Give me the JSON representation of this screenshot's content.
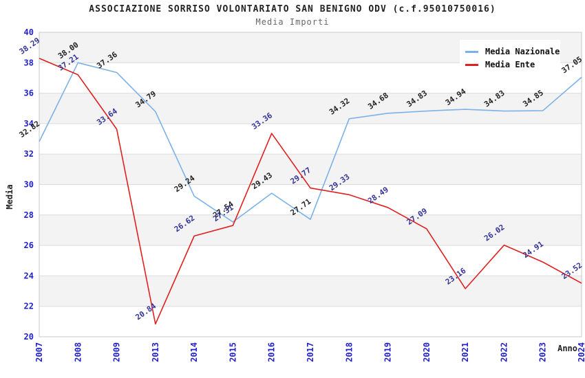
{
  "page": {
    "title": "ASSOCIAZIONE SORRISO VOLONTARIATO SAN BENIGNO ODV (c.f.95010750016)",
    "subtitle": "Media Importi"
  },
  "chart_data": {
    "type": "line",
    "title": "ASSOCIAZIONE SORRISO VOLONTARIATO SAN BENIGNO ODV (c.f.95010750016)",
    "subtitle": "Media Importi",
    "xlabel": "Anno",
    "ylabel": "Media",
    "categories": [
      "2007",
      "2008",
      "2009",
      "2013",
      "2014",
      "2015",
      "2016",
      "2017",
      "2018",
      "2019",
      "2020",
      "2021",
      "2022",
      "2023",
      "2024"
    ],
    "series": [
      {
        "name": "Media Nazionale",
        "color": "#7bb1e7",
        "label_color": "#222222",
        "values": [
          32.82,
          38.0,
          37.36,
          34.79,
          29.24,
          27.54,
          29.43,
          27.71,
          34.32,
          34.68,
          34.83,
          34.94,
          34.83,
          34.85,
          37.05
        ]
      },
      {
        "name": "Media Ente",
        "color": "#e01f1f",
        "label_color": "#333399",
        "values": [
          38.29,
          37.21,
          33.64,
          20.84,
          26.62,
          27.31,
          33.36,
          29.77,
          29.33,
          28.49,
          27.09,
          23.16,
          26.02,
          24.91,
          23.52
        ]
      }
    ],
    "ylim": [
      20,
      40
    ],
    "ytick_step": 2,
    "yticks": [
      20,
      22,
      24,
      26,
      28,
      30,
      32,
      34,
      36,
      38,
      40
    ],
    "grid": "horizontal",
    "legend_position": "top-right",
    "band_color_gray": "#f3f3f3",
    "band_color_white": "#ffffff",
    "gridline_color": "#dcdcdc",
    "plot_border_color": "#c8c8c8",
    "tick_label_color": "#2222cc",
    "axis_title_color": "#222222"
  }
}
